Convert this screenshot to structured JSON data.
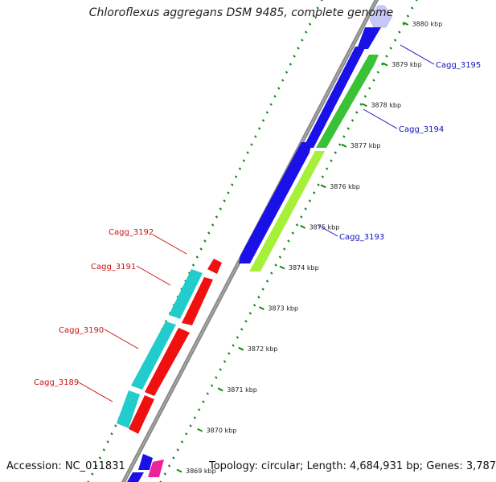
{
  "title": "Chloroflexus aggregans DSM 9485, complete genome",
  "footer": {
    "accession": "Accession: NC_011831",
    "summary": "Topology: circular; Length: 4,684,931 bp; Genes: 3,787"
  },
  "ticks": [
    "3869 kbp",
    "3870 kbp",
    "3871 kbp",
    "3872 kbp",
    "3873 kbp",
    "3874 kbp",
    "3875 kbp",
    "3876 kbp",
    "3877 kbp",
    "3878 kbp",
    "3879 kbp",
    "3880 kbp"
  ],
  "labels": {
    "cagg_3195": "Cagg_3195",
    "cagg_3194": "Cagg_3194",
    "cagg_3193": "Cagg_3193",
    "cagg_3192": "Cagg_3192",
    "cagg_3191": "Cagg_3191",
    "cagg_3190": "Cagg_3190",
    "cagg_3189": "Cagg_3189"
  },
  "colors": {
    "backbone": "#888888",
    "forward_cds": "#1a10e8",
    "forward_light": "#c8c8f8",
    "green_cds": "#39c236",
    "lime_cds": "#a6f03a",
    "reverse_cds": "#f01010",
    "cyan_cds": "#22cccc",
    "magenta_cds": "#ee2299",
    "tick_green": "#118811",
    "label_blue": "#1010c0",
    "label_red": "#cc1111"
  }
}
